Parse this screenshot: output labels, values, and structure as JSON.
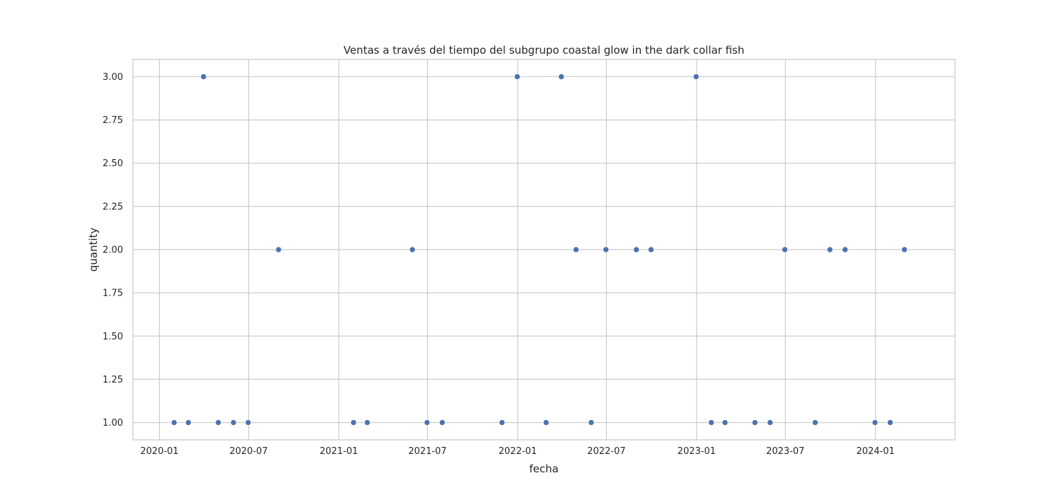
{
  "chart_data": {
    "type": "scatter",
    "title": "Ventas a través del tiempo del subgrupo coastal glow in the dark collar fish",
    "xlabel": "fecha",
    "ylabel": "quantity",
    "x_ticks": [
      "2020-01",
      "2020-07",
      "2021-01",
      "2021-07",
      "2022-01",
      "2022-07",
      "2023-01",
      "2023-07",
      "2024-01"
    ],
    "y_ticks": [
      "1.00",
      "1.25",
      "1.50",
      "1.75",
      "2.00",
      "2.25",
      "2.50",
      "2.75",
      "3.00"
    ],
    "xlim": [
      "2019-11-08",
      "2024-06-11"
    ],
    "ylim": [
      0.9,
      3.1
    ],
    "grid": true,
    "marker_color": "#4c72b0",
    "points": [
      {
        "x": "2020-01-31",
        "y": 1
      },
      {
        "x": "2020-02-29",
        "y": 1
      },
      {
        "x": "2020-03-31",
        "y": 3
      },
      {
        "x": "2020-04-30",
        "y": 1
      },
      {
        "x": "2020-05-31",
        "y": 1
      },
      {
        "x": "2020-06-30",
        "y": 1
      },
      {
        "x": "2020-08-31",
        "y": 2
      },
      {
        "x": "2021-01-31",
        "y": 1
      },
      {
        "x": "2021-02-28",
        "y": 1
      },
      {
        "x": "2021-05-31",
        "y": 2
      },
      {
        "x": "2021-06-30",
        "y": 1
      },
      {
        "x": "2021-07-31",
        "y": 1
      },
      {
        "x": "2021-11-30",
        "y": 1
      },
      {
        "x": "2021-12-31",
        "y": 3
      },
      {
        "x": "2022-02-28",
        "y": 1
      },
      {
        "x": "2022-03-31",
        "y": 3
      },
      {
        "x": "2022-04-30",
        "y": 2
      },
      {
        "x": "2022-05-31",
        "y": 1
      },
      {
        "x": "2022-06-30",
        "y": 2
      },
      {
        "x": "2022-08-31",
        "y": 2
      },
      {
        "x": "2022-09-30",
        "y": 2
      },
      {
        "x": "2022-12-31",
        "y": 3
      },
      {
        "x": "2023-01-31",
        "y": 1
      },
      {
        "x": "2023-02-28",
        "y": 1
      },
      {
        "x": "2023-04-30",
        "y": 1
      },
      {
        "x": "2023-05-31",
        "y": 1
      },
      {
        "x": "2023-06-30",
        "y": 2
      },
      {
        "x": "2023-08-31",
        "y": 1
      },
      {
        "x": "2023-09-30",
        "y": 2
      },
      {
        "x": "2023-10-31",
        "y": 2
      },
      {
        "x": "2023-12-31",
        "y": 1
      },
      {
        "x": "2024-01-31",
        "y": 1
      },
      {
        "x": "2024-02-29",
        "y": 2
      }
    ]
  }
}
